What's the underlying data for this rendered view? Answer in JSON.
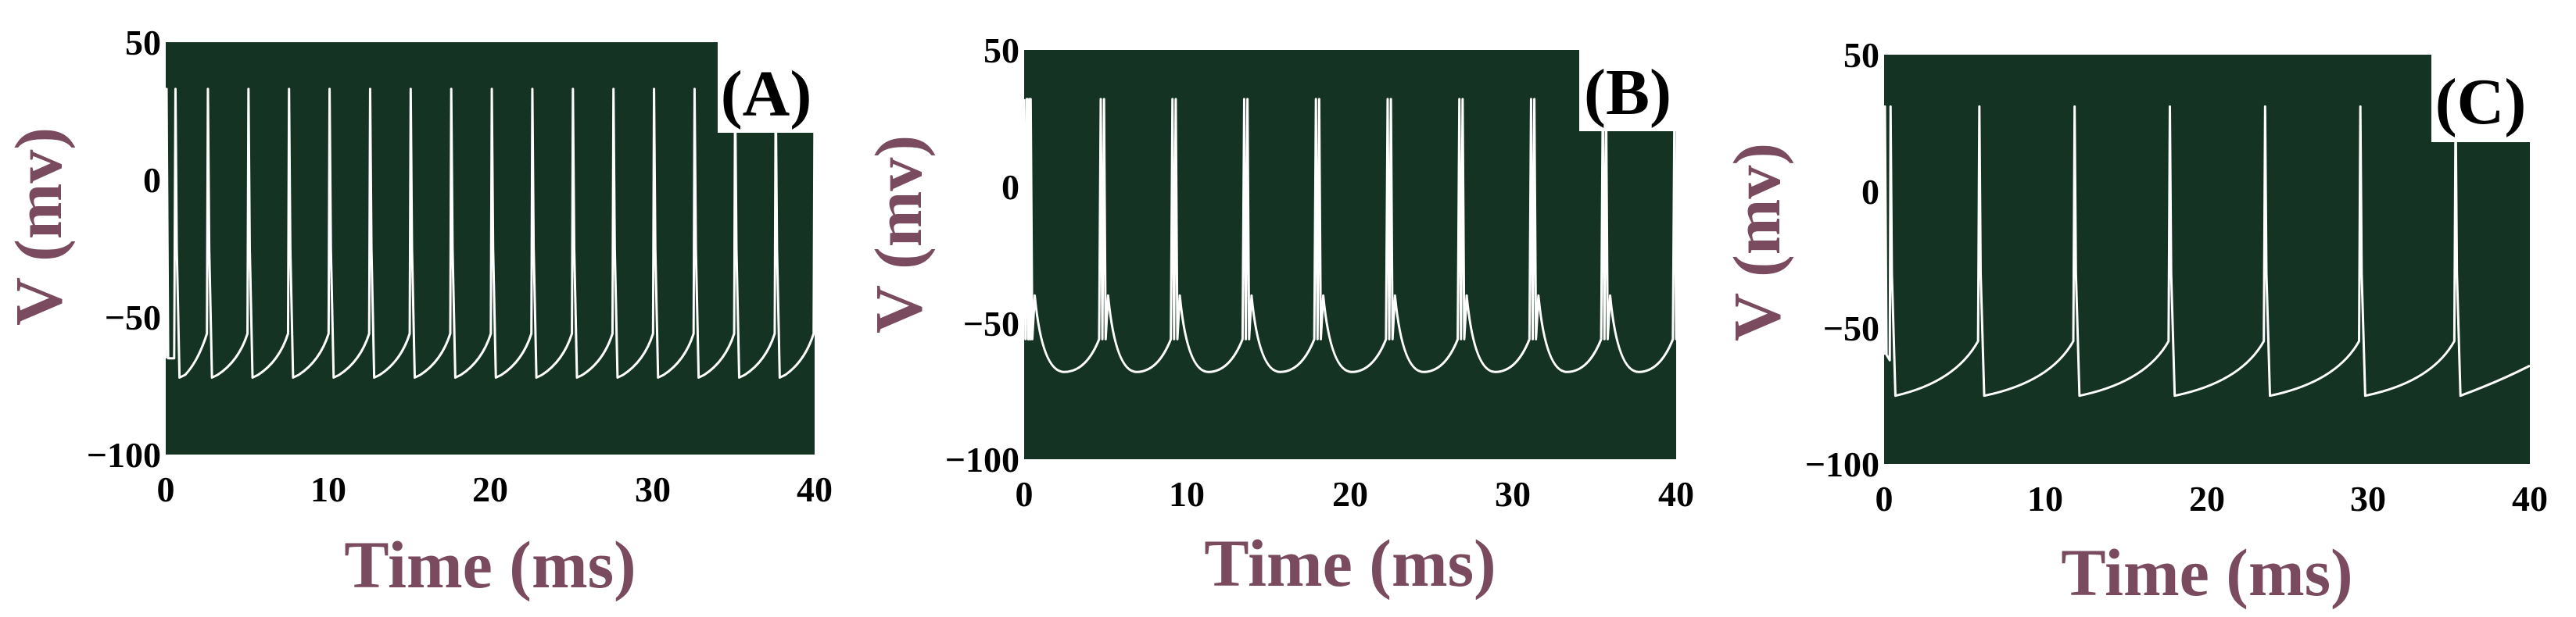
{
  "colors": {
    "plot_bg": "#143322",
    "trace": "#ffffff",
    "axis_title": "#7a4a5e",
    "label_box": "#ffffff"
  },
  "chart_data": [
    {
      "type": "line",
      "panel_label": "(A)",
      "xlabel": "Time (ms)",
      "ylabel": "V (mv)",
      "xlim": [
        0,
        40
      ],
      "ylim": [
        -100,
        50
      ],
      "xticks": [
        "0",
        "10",
        "20",
        "30",
        "40"
      ],
      "yticks": [
        "50",
        "0",
        "−50",
        "−100"
      ],
      "grid": false,
      "spike_times_ms": [
        0.6,
        2.6,
        5.1,
        7.6,
        10.1,
        12.6,
        15.1,
        17.6,
        20.1,
        22.6,
        25.1,
        27.6,
        30.1,
        32.6,
        35.1,
        37.6,
        40.0
      ],
      "spike_peak_mv": 33,
      "trough_mv": -72,
      "start_mv": -65
    },
    {
      "type": "line",
      "panel_label": "(B)",
      "xlabel": "Time (ms)",
      "ylabel": "V (mv)",
      "xlim": [
        0,
        40
      ],
      "ylim": [
        -100,
        50
      ],
      "xticks": [
        "0",
        "10",
        "20",
        "30",
        "40"
      ],
      "yticks": [
        "50",
        "0",
        "−50",
        "−100"
      ],
      "grid": false,
      "burst_times_ms": [
        0.2,
        4.7,
        9.1,
        13.5,
        17.9,
        22.3,
        26.7,
        31.1,
        35.5,
        39.9
      ],
      "spike_peak_mv": 32,
      "trough_mv": -68,
      "plateau_mv": -56
    },
    {
      "type": "line",
      "panel_label": "(C)",
      "xlabel": "Time (ms)",
      "ylabel": "V (mv)",
      "xlim": [
        0,
        40
      ],
      "ylim": [
        -100,
        50
      ],
      "xticks": [
        "0",
        "10",
        "20",
        "30",
        "40"
      ],
      "yticks": [
        "50",
        "0",
        "−50",
        "−100"
      ],
      "grid": false,
      "spike_times_ms": [
        0.4,
        5.9,
        11.8,
        17.7,
        23.6,
        29.5,
        35.4
      ],
      "spike_peak_mv": 31,
      "trough_mv": -75,
      "threshold_mv": -55,
      "end_mv": -64
    }
  ]
}
